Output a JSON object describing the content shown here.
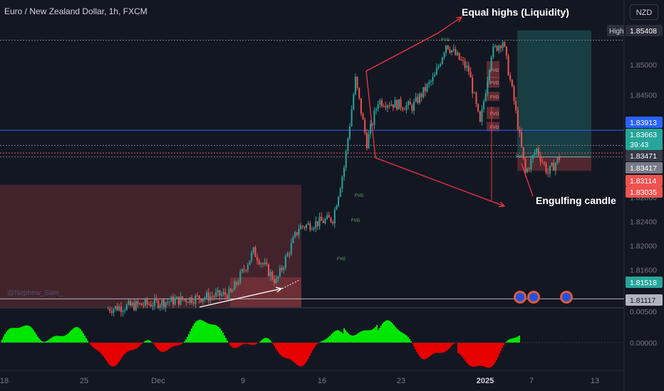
{
  "header": {
    "title": "Euro / New Zealand Dollar, 1h, FXCM",
    "currency": "NZD",
    "watermark": "@Nephew_Sam_"
  },
  "annotations": {
    "equal_highs": "Equal highs (Liquidity)",
    "engulfing": "Engulfing candle",
    "fvg_label": "FVG"
  },
  "chart_data": {
    "type": "candlestick",
    "price_axis": {
      "min": 1.8098,
      "max": 1.8572,
      "ticks": [
        "1.85000",
        "1.84500",
        "1.84000",
        "1.83500",
        "1.83000",
        "1.82800",
        "1.82400",
        "1.82000",
        "1.81600"
      ]
    },
    "price_tags": [
      {
        "label": "High",
        "value": "1.85408",
        "color": "#2a2e39"
      },
      {
        "value": "1.83913",
        "color": "#2962ff"
      },
      {
        "value": "1.83663",
        "color": "#26a69a"
      },
      {
        "value": "39:43",
        "color": "#26a69a"
      },
      {
        "value": "1.83471",
        "color": "#363a45"
      },
      {
        "value": "1.83417",
        "color": "#787b86"
      },
      {
        "value": "1.83114",
        "color": "#ef5350"
      },
      {
        "value": "1.83035",
        "color": "#ef5350"
      },
      {
        "value": "1.81518",
        "color": "#26a69a"
      },
      {
        "value": "1.81117",
        "color": "#b2b5be"
      }
    ],
    "oscillator_axis": {
      "ticks": [
        "0.00500",
        "0.00000"
      ]
    },
    "time_axis": {
      "ticks": [
        "18",
        "25",
        "Dec",
        "9",
        "16",
        "23",
        "2025",
        "7",
        "13"
      ]
    },
    "colors": {
      "bull": "#26a69a",
      "bear": "#ef5350",
      "osc_pos": "#00e600",
      "osc_neg": "#e60000",
      "annotation": "#f23645"
    },
    "price_path": [
      {
        "date": "Nov 27",
        "price": 1.8095
      },
      {
        "date": "Dec 8",
        "price": 1.812
      },
      {
        "date": "Dec 10",
        "price": 1.819
      },
      {
        "date": "Dec 12",
        "price": 1.814
      },
      {
        "date": "Dec 14",
        "price": 1.823
      },
      {
        "date": "Dec 17",
        "price": 1.8245
      },
      {
        "date": "Dec 18",
        "price": 1.833
      },
      {
        "date": "Dec 19",
        "price": 1.8475
      },
      {
        "date": "Dec 20",
        "price": 1.837
      },
      {
        "date": "Dec 21",
        "price": 1.844
      },
      {
        "date": "Dec 24",
        "price": 1.843
      },
      {
        "date": "Dec 26",
        "price": 1.848
      },
      {
        "date": "Dec 27",
        "price": 1.8535
      },
      {
        "date": "Dec 29",
        "price": 1.849
      },
      {
        "date": "Dec 30",
        "price": 1.84
      },
      {
        "date": "Dec 31",
        "price": 1.852
      },
      {
        "date": "Jan 1",
        "price": 1.854
      },
      {
        "date": "Jan 2",
        "price": 1.844
      },
      {
        "date": "Jan 3",
        "price": 1.832
      },
      {
        "date": "Jan 4",
        "price": 1.836
      },
      {
        "date": "Jan 5",
        "price": 1.832
      },
      {
        "date": "Jan 6",
        "price": 1.8346
      }
    ]
  }
}
